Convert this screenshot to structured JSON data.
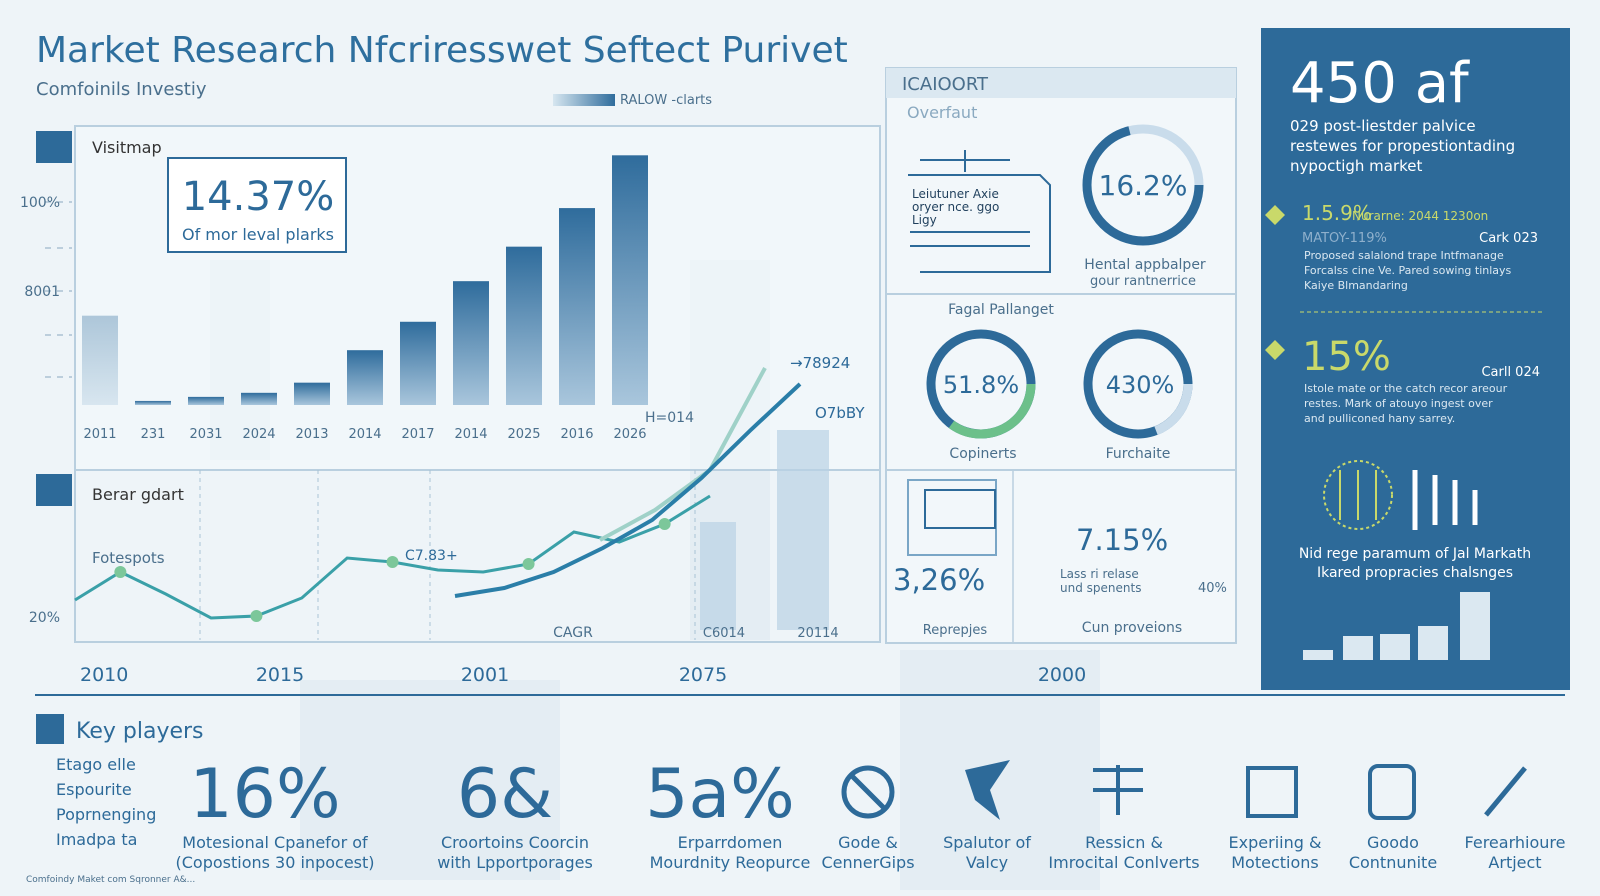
{
  "header": {
    "title": "Market Research Nfcriresswet Seftect Purivet",
    "subtitle": "Comfoinils Investiy",
    "legend": "RALOW -clarts"
  },
  "growth_panel": {
    "title": "Visitmap",
    "callout_value": "14.37%",
    "callout_text": "Of mor leval plarks",
    "y_labels": [
      "100%",
      "8001",
      "20%"
    ],
    "categories": [
      "2011",
      "231",
      "2031",
      "2024",
      "2013",
      "2014",
      "2017",
      "2014",
      "2025",
      "2016",
      "2026"
    ],
    "values": [
      44,
      2,
      4,
      6,
      11,
      27,
      41,
      61,
      78,
      97,
      123
    ],
    "ylim": [
      0,
      130
    ],
    "color": "#3a76a6",
    "annotations": [
      "→78924",
      "H=014",
      "O7bBY"
    ]
  },
  "trend_panel": {
    "title": "Berar gdart",
    "subtitle": "Fotespots",
    "annotations": [
      "C7.83+",
      "CAGR",
      "C6014",
      "20114"
    ],
    "ylim": [
      0,
      140
    ],
    "series": [
      {
        "color": "#3aa0a8",
        "values": [
          15,
          29,
          18,
          6,
          7,
          16,
          36,
          34,
          30,
          29,
          33,
          49,
          44,
          53,
          67
        ]
      },
      {
        "color": "#9fd1c8",
        "values": [
          45,
          60,
          80,
          131
        ]
      },
      {
        "color": "#2a7ea8",
        "values": [
          17,
          21,
          29,
          41,
          55,
          76,
          100,
          123
        ]
      }
    ],
    "bars": [
      54,
      100
    ],
    "x_labels": [
      "2010",
      "2015",
      "2001",
      "2075",
      "2000"
    ]
  },
  "overview_panel": {
    "heading": "ICAIOORT",
    "subheading": "Overfaut",
    "doc_lines": [
      "Leiutuner Axie",
      "oryer nce. ggo",
      "Ligy"
    ],
    "donut_1": {
      "value": "16.2%",
      "caption": [
        "Hental appbalper",
        "gour rantnerrice"
      ]
    },
    "section_title": "Fagal Pallanget",
    "donut_2": {
      "value": "51.8%",
      "caption": "Copinerts"
    },
    "donut_3": {
      "value": "430%",
      "caption": "Furchaite"
    },
    "stat_a": {
      "value": "3,26%",
      "caption": "Reprepjes"
    },
    "stat_b": {
      "value": "7.15%",
      "note": [
        "Lass ri relase",
        "und spenents"
      ],
      "side": "40%",
      "caption": "Cun proveions"
    }
  },
  "side_panel": {
    "headline": "450 af",
    "intro": [
      "029 post-liestder palvice",
      "restewes for propestiontading",
      "nypoctigh market"
    ],
    "item_1": {
      "value": "1.5.9%",
      "tag": "Nurarne: 2044 1230on",
      "sub": "MATOY-119%",
      "date": "Cark 023",
      "text": [
        "Proposed salalond trape Intfmanage",
        "Forcalss cine Ve. Pared sowing tinlays",
        "Kaiye Blmandaring"
      ]
    },
    "item_2": {
      "value": "15%",
      "date": "Carll 024",
      "text": [
        "Istole mate or the catch recor areour",
        "restes. Mark of atouyo ingest over",
        "and pulliconed hany sarrey."
      ]
    },
    "footer_text": [
      "Nid rege paramum of Jal Markath",
      "Ikared propracies chalsnges"
    ],
    "bars": [
      10,
      24,
      26,
      34,
      68
    ],
    "ylim": [
      0,
      70
    ]
  },
  "key_players": {
    "title": "Key players",
    "list": [
      "Etago elle",
      "Espourite",
      "Poprnenging",
      "Imadpa ta"
    ],
    "stats": [
      {
        "value": "16%",
        "caption": [
          "Motesional Cpanefor of",
          "(Copostions 30 inpocest)"
        ]
      },
      {
        "value": "6&",
        "caption": [
          "Croortoins Coorcin",
          "with Lpportporages"
        ]
      },
      {
        "value": "5a%",
        "caption": [
          "Erparrdomen",
          "Mourdnity Reopurce"
        ]
      }
    ],
    "features": [
      [
        "Gode &",
        "CennerGips"
      ],
      [
        "Spalutor of",
        "Valcy"
      ],
      [
        "Ressicn &",
        "Imrocital Conlverts"
      ],
      [
        "Experiing &",
        "Motections"
      ],
      [
        "Goodo",
        "Contnunite"
      ],
      [
        "Ferearhioure",
        "Artject"
      ]
    ],
    "footnote": "Comfoindy Maket com Sqronner A&..."
  }
}
